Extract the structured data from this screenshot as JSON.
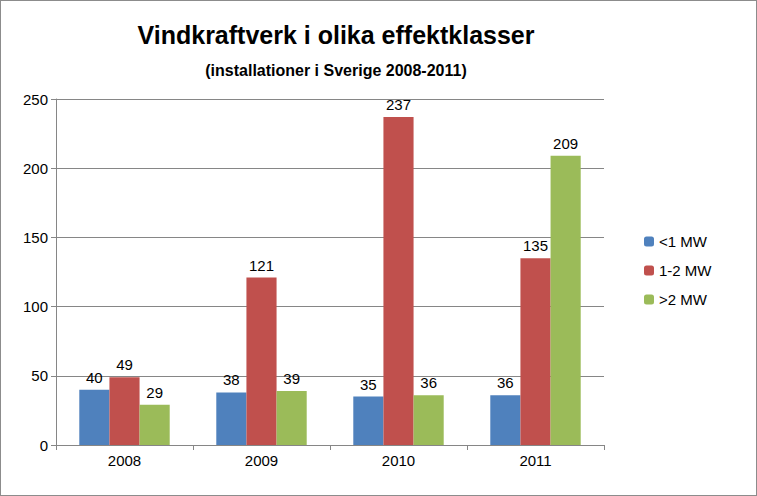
{
  "chart_data": {
    "type": "bar",
    "title": "Vindkraftverk i olika effektklasser",
    "subtitle": "(installationer i Sverige 2008-2011)",
    "categories": [
      "2008",
      "2009",
      "2010",
      "2011"
    ],
    "series": [
      {
        "name": "<1 MW",
        "color": "#4F81BD",
        "values": [
          40,
          38,
          35,
          36
        ]
      },
      {
        "name": "1-2 MW",
        "color": "#C0504D",
        "values": [
          49,
          121,
          237,
          135
        ]
      },
      {
        "name": ">2 MW",
        "color": "#9BBB59",
        "values": [
          29,
          39,
          36,
          209
        ]
      }
    ],
    "ylim": [
      0,
      250
    ],
    "yticks": [
      0,
      50,
      100,
      150,
      200,
      250
    ],
    "grid": true,
    "legend": "right",
    "data_labels": true
  }
}
